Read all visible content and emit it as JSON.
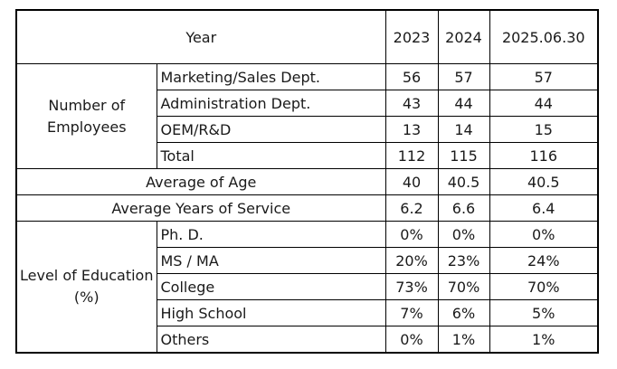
{
  "header": {
    "year_label": "Year",
    "columns": [
      "2023",
      "2024",
      "2025.06.30"
    ]
  },
  "employees": {
    "group_label": "Number of Employees",
    "rows": [
      {
        "label": "Marketing/Sales Dept.",
        "values": [
          "56",
          "57",
          "57"
        ]
      },
      {
        "label": "Administration Dept.",
        "values": [
          "43",
          "44",
          "44"
        ]
      },
      {
        "label": "OEM/R&D",
        "values": [
          "13",
          "14",
          "15"
        ]
      },
      {
        "label": "Total",
        "values": [
          "112",
          "115",
          "116"
        ]
      }
    ]
  },
  "age": {
    "label": "Average of Age",
    "values": [
      "40",
      "40.5",
      "40.5"
    ]
  },
  "service": {
    "label": "Average Years of Service",
    "values": [
      "6.2",
      "6.6",
      "6.4"
    ]
  },
  "education": {
    "group_label": "Level of Education (%)",
    "rows": [
      {
        "label": "Ph. D.",
        "values": [
          "0%",
          "0%",
          "0%"
        ]
      },
      {
        "label": "MS / MA",
        "values": [
          "20%",
          "23%",
          "24%"
        ]
      },
      {
        "label": "College",
        "values": [
          "73%",
          "70%",
          "70%"
        ]
      },
      {
        "label": "High School",
        "values": [
          "7%",
          "6%",
          "5%"
        ]
      },
      {
        "label": "Others",
        "values": [
          "0%",
          "1%",
          "1%"
        ]
      }
    ]
  }
}
